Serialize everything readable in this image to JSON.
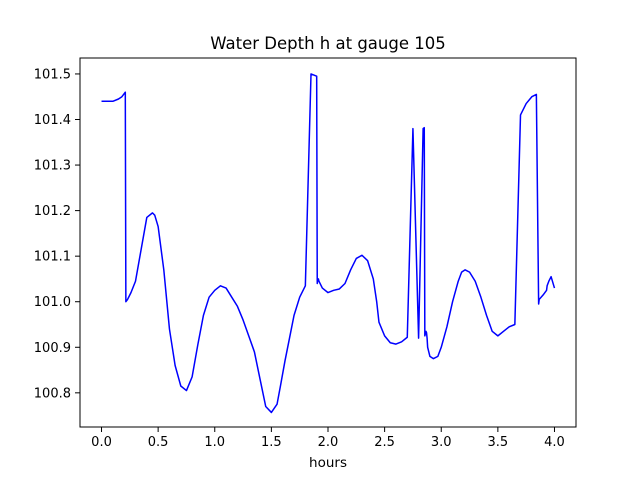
{
  "chart_data": {
    "type": "line",
    "title": "Water Depth h at gauge 105",
    "xlabel": "hours",
    "ylabel": "",
    "xlim": [
      -0.19,
      4.19
    ],
    "ylim": [
      100.725,
      101.535
    ],
    "xticks": [
      0.0,
      0.5,
      1.0,
      1.5,
      2.0,
      2.5,
      3.0,
      3.5,
      4.0
    ],
    "xtick_labels": [
      "0.0",
      "0.5",
      "1.0",
      "1.5",
      "2.0",
      "2.5",
      "3.0",
      "3.5",
      "4.0"
    ],
    "yticks": [
      100.8,
      100.9,
      101.0,
      101.1,
      101.2,
      101.3,
      101.4,
      101.5
    ],
    "ytick_labels": [
      "100.8",
      "100.9",
      "101.0",
      "101.1",
      "101.2",
      "101.3",
      "101.4",
      "101.5"
    ],
    "grid": false,
    "series": [
      {
        "color": "#0000ff",
        "x": [
          0.0,
          0.1,
          0.15,
          0.18,
          0.21,
          0.215,
          0.23,
          0.26,
          0.3,
          0.35,
          0.4,
          0.45,
          0.47,
          0.5,
          0.55,
          0.6,
          0.65,
          0.7,
          0.75,
          0.8,
          0.85,
          0.9,
          0.95,
          1.0,
          1.05,
          1.1,
          1.15,
          1.2,
          1.25,
          1.3,
          1.35,
          1.4,
          1.45,
          1.5,
          1.55,
          1.58,
          1.62,
          1.66,
          1.7,
          1.75,
          1.8,
          1.85,
          1.9,
          1.905,
          1.91,
          1.915,
          1.92,
          1.95,
          2.0,
          2.05,
          2.1,
          2.15,
          2.2,
          2.25,
          2.3,
          2.35,
          2.4,
          2.43,
          2.45,
          2.5,
          2.55,
          2.6,
          2.65,
          2.7,
          2.75,
          2.8,
          2.84,
          2.85,
          2.855,
          2.86,
          2.865,
          2.87,
          2.875,
          2.88,
          2.9,
          2.93,
          2.97,
          3.0,
          3.05,
          3.1,
          3.15,
          3.18,
          3.21,
          3.25,
          3.3,
          3.35,
          3.4,
          3.45,
          3.5,
          3.55,
          3.6,
          3.65,
          3.7,
          3.75,
          3.8,
          3.84,
          3.86,
          3.865,
          3.9,
          3.93,
          3.935,
          3.95,
          3.97,
          4.0
        ],
        "y": [
          101.44,
          101.44,
          101.445,
          101.45,
          101.46,
          101.0,
          101.005,
          101.02,
          101.045,
          101.115,
          101.185,
          101.195,
          101.19,
          101.165,
          101.07,
          100.94,
          100.86,
          100.815,
          100.805,
          100.835,
          100.905,
          100.97,
          101.01,
          101.025,
          101.035,
          101.03,
          101.01,
          100.99,
          100.96,
          100.925,
          100.89,
          100.83,
          100.77,
          100.757,
          100.775,
          100.815,
          100.87,
          100.92,
          100.97,
          101.01,
          101.035,
          101.5,
          101.495,
          101.04,
          101.048,
          101.05,
          101.045,
          101.03,
          101.02,
          101.025,
          101.028,
          101.04,
          101.07,
          101.095,
          101.102,
          101.09,
          101.05,
          101.0,
          100.955,
          100.925,
          100.91,
          100.907,
          100.912,
          100.922,
          101.38,
          100.92,
          101.38,
          101.382,
          100.925,
          100.93,
          100.935,
          100.932,
          100.92,
          100.9,
          100.88,
          100.875,
          100.88,
          100.9,
          100.945,
          101.0,
          101.045,
          101.065,
          101.07,
          101.065,
          101.045,
          101.01,
          100.97,
          100.935,
          100.925,
          100.935,
          100.945,
          100.95,
          101.41,
          101.435,
          101.45,
          101.455,
          100.995,
          101.005,
          101.015,
          101.025,
          101.035,
          101.045,
          101.055,
          101.03
        ]
      }
    ]
  }
}
